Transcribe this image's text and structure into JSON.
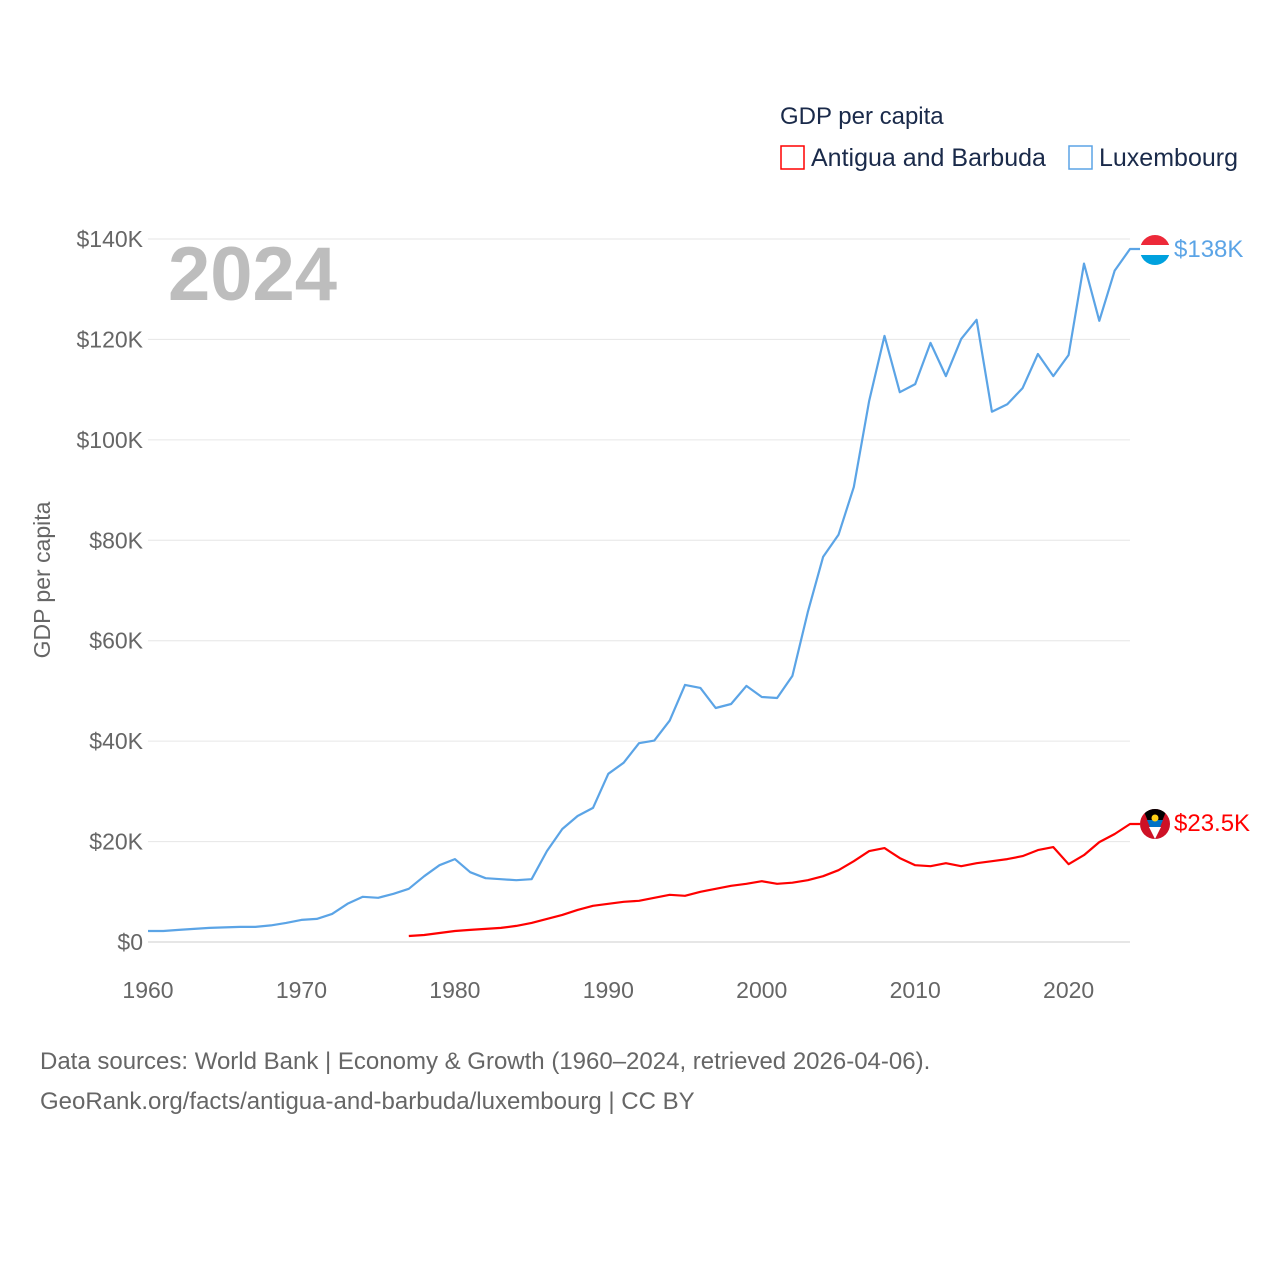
{
  "chart_data": {
    "type": "line",
    "title": "GDP per capita",
    "year_label": "2024",
    "xlabel": "",
    "ylabel": "GDP per capita",
    "xlim": [
      1960,
      2024
    ],
    "ylim": [
      0,
      140000
    ],
    "x_ticks": [
      1960,
      1970,
      1980,
      1990,
      2000,
      2010,
      2020
    ],
    "y_ticks": [
      0,
      20000,
      40000,
      60000,
      80000,
      100000,
      120000,
      140000
    ],
    "y_tick_labels": [
      "$0",
      "$20K",
      "$40K",
      "$60K",
      "$80K",
      "$100K",
      "$120K",
      "$140K"
    ],
    "grid": true,
    "legend_position": "top-right",
    "series": [
      {
        "name": "Antigua and Barbuda",
        "color": "#ff0000",
        "end_label": "$23.5K",
        "x_start": 1977,
        "values": [
          1.2,
          1.4,
          1.8,
          2.2,
          2.4,
          2.6,
          2.8,
          3.2,
          3.8,
          4.6,
          5.4,
          6.4,
          7.2,
          7.6,
          8.0,
          8.2,
          8.8,
          9.4,
          9.2,
          10.0,
          10.6,
          11.2,
          11.6,
          12.1,
          11.6,
          11.8,
          12.3,
          13.1,
          14.3,
          16.1,
          18.1,
          18.7,
          16.7,
          15.3,
          15.1,
          15.7,
          15.1,
          15.7,
          16.1,
          16.5,
          17.1,
          18.3,
          18.9,
          15.5,
          17.3,
          19.9,
          21.5,
          23.5
        ]
      },
      {
        "name": "Luxembourg",
        "color": "#5ba4e6",
        "end_label": "$138K",
        "x_start": 1960,
        "values": [
          2.2,
          2.2,
          2.4,
          2.6,
          2.8,
          2.9,
          3.0,
          3.0,
          3.3,
          3.8,
          4.4,
          4.6,
          5.6,
          7.6,
          9.0,
          8.8,
          9.6,
          10.6,
          13.1,
          15.3,
          16.5,
          13.9,
          12.7,
          12.5,
          12.3,
          12.5,
          18.1,
          22.5,
          25.1,
          26.7,
          33.5,
          35.7,
          39.6,
          40.1,
          44.1,
          51.2,
          50.6,
          46.6,
          47.4,
          51.0,
          48.8,
          48.6,
          53.0,
          65.7,
          76.7,
          81.1,
          90.6,
          107.8,
          120.7,
          109.5,
          111.1,
          119.3,
          112.7,
          120.1,
          123.9,
          105.6,
          107.1,
          110.3,
          117.1,
          112.7,
          116.9,
          135.1,
          123.7,
          133.7,
          138.0
        ]
      }
    ],
    "value_unit": "thousand USD"
  },
  "footer": {
    "line1": "Data sources: World Bank | Economy & Growth (1960–2024, retrieved 2026-04-06).",
    "line2": "GeoRank.org/facts/antigua-and-barbuda/luxembourg | CC BY"
  }
}
